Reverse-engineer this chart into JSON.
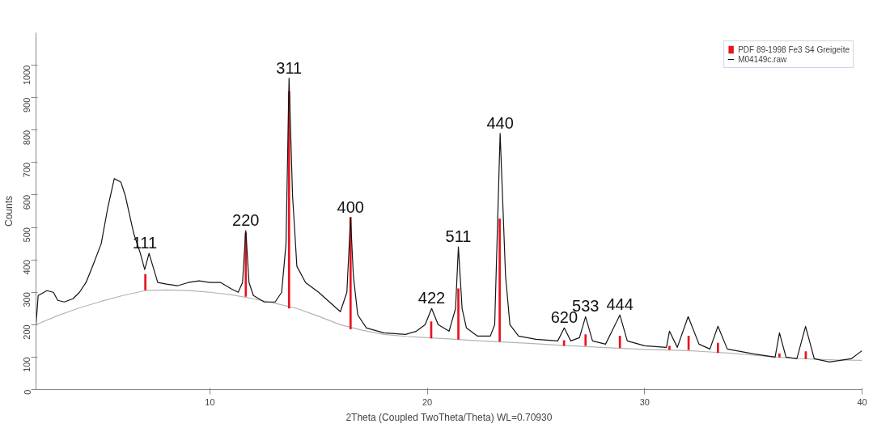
{
  "chart_data": {
    "type": "line",
    "xlabel": "2Theta (Coupled TwoTheta/Theta) WL=0.70930",
    "ylabel": "Counts",
    "xlim": [
      2,
      40
    ],
    "xticks": [
      10,
      20,
      30,
      40
    ],
    "ylim": [
      0,
      1100
    ],
    "yticks": [
      0,
      100,
      200,
      300,
      400,
      500,
      600,
      700,
      800,
      900,
      1000
    ],
    "grid": false,
    "legend": "top right",
    "marker": "none",
    "line_style": "solid",
    "series": [
      {
        "type": "line",
        "color": "#b4b4b4",
        "x": [
          2,
          3,
          4,
          5,
          6,
          7,
          8,
          9,
          10,
          11,
          12,
          13,
          14,
          15,
          16,
          17,
          18,
          19,
          20,
          21,
          22,
          23,
          24,
          25,
          26,
          27,
          28,
          29,
          30,
          31,
          32,
          33,
          34,
          35,
          36,
          37,
          38,
          39,
          40
        ],
        "values": [
          200,
          228,
          252,
          272,
          290,
          305,
          307,
          305,
          300,
          292,
          280,
          266,
          250,
          226,
          200,
          183,
          170,
          164,
          160,
          156,
          152,
          148,
          145,
          141,
          137,
          134,
          130,
          127,
          124,
          122,
          120,
          116,
          112,
          106,
          100,
          96,
          93,
          91,
          90
        ]
      },
      {
        "name": "M04149c.raw",
        "color": "#141414",
        "x": [
          2,
          2.1,
          2.5,
          2.8,
          3,
          3.3,
          3.7,
          4,
          4.3,
          4.6,
          5,
          5.3,
          5.6,
          5.9,
          6.1,
          6.3,
          6.5,
          6.8,
          7,
          7.2,
          7.6,
          8,
          8.5,
          9,
          9.5,
          10,
          10.5,
          11,
          11.3,
          11.5,
          11.65,
          11.8,
          12,
          12.5,
          13,
          13.3,
          13.5,
          13.64,
          13.8,
          14,
          14.4,
          15,
          15.5,
          16,
          16.3,
          16.47,
          16.6,
          16.8,
          17.2,
          18,
          19,
          19.5,
          19.9,
          20.2,
          20.5,
          21,
          21.3,
          21.43,
          21.6,
          21.8,
          22.3,
          22.9,
          23.1,
          23.35,
          23.6,
          23.8,
          24.2,
          25,
          26,
          26.3,
          26.6,
          27,
          27.28,
          27.6,
          28.2,
          28.86,
          29.2,
          30,
          31,
          31.14,
          31.5,
          32,
          32.5,
          33,
          33.37,
          33.8,
          35,
          36,
          36.2,
          36.5,
          37,
          37.4,
          37.8,
          38.5,
          39.5,
          40
        ],
        "values": [
          200,
          290,
          305,
          300,
          275,
          270,
          280,
          300,
          330,
          380,
          450,
          560,
          650,
          640,
          600,
          540,
          480,
          420,
          370,
          420,
          330,
          325,
          320,
          330,
          335,
          330,
          330,
          310,
          300,
          330,
          490,
          330,
          290,
          270,
          270,
          300,
          450,
          960,
          600,
          380,
          330,
          300,
          270,
          240,
          300,
          530,
          350,
          230,
          190,
          175,
          170,
          180,
          200,
          250,
          200,
          180,
          250,
          440,
          250,
          190,
          165,
          165,
          200,
          790,
          350,
          200,
          165,
          155,
          150,
          190,
          150,
          160,
          225,
          150,
          140,
          230,
          150,
          135,
          130,
          180,
          130,
          225,
          140,
          125,
          195,
          125,
          110,
          100,
          175,
          100,
          95,
          195,
          95,
          85,
          95,
          120
        ]
      },
      {
        "type": "bar",
        "name": "PDF 89-1998 Fe3 S4 Greigeite",
        "color": "#e8141e",
        "x": [
          7.03,
          11.65,
          13.64,
          16.47,
          20.18,
          21.43,
          23.33,
          26.29,
          27.28,
          28.86,
          31.14,
          32.02,
          33.37,
          36.2,
          37.41
        ],
        "base": [
          306,
          286,
          250,
          186,
          158,
          154,
          148,
          135,
          135,
          128,
          122,
          122,
          113,
          99,
          94
        ],
        "values": [
          50,
          198,
          669,
          346,
          52,
          158,
          379,
          17,
          35,
          38,
          13,
          44,
          31,
          12,
          24
        ]
      }
    ],
    "annotations": [
      {
        "text": "111",
        "x": 7,
        "y": 420
      },
      {
        "text": "220",
        "x": 11.65,
        "y": 490
      },
      {
        "text": "311",
        "x": 13.64,
        "y": 960
      },
      {
        "text": "400",
        "x": 16.47,
        "y": 530
      },
      {
        "text": "422",
        "x": 20.2,
        "y": 250
      },
      {
        "text": "511",
        "x": 21.43,
        "y": 440
      },
      {
        "text": "440",
        "x": 23.35,
        "y": 790
      },
      {
        "text": "620",
        "x": 26.3,
        "y": 190
      },
      {
        "text": "533",
        "x": 27.28,
        "y": 225
      },
      {
        "text": "444",
        "x": 28.86,
        "y": 230
      }
    ]
  }
}
